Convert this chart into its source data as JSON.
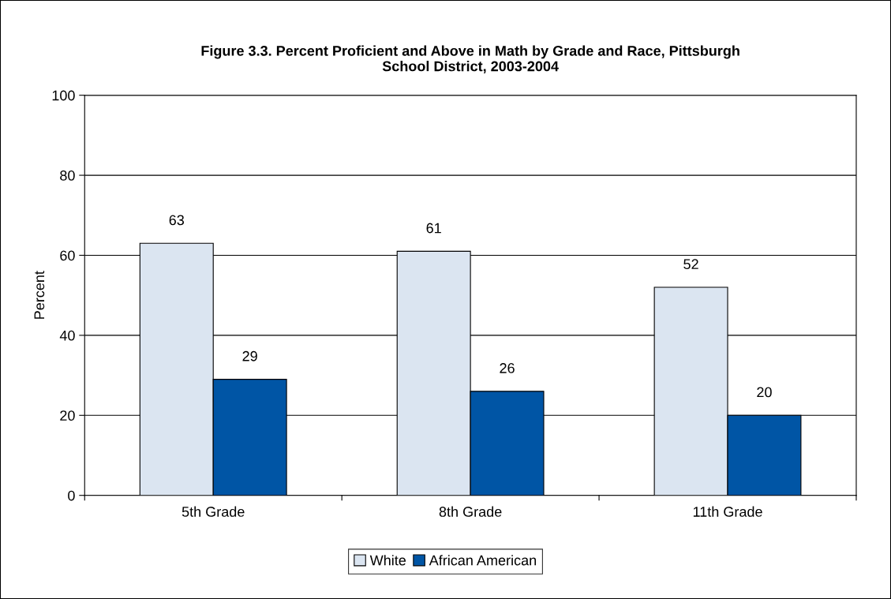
{
  "chart_data": {
    "type": "bar",
    "title": "Figure 3.3. Percent Proficient and Above in Math by Grade and Race, Pittsburgh\nSchool District, 2003-2004",
    "ylabel": "Percent",
    "categories": [
      "5th Grade",
      "8th Grade",
      "11th Grade"
    ],
    "series": [
      {
        "name": "White",
        "color": "#dbe5f1",
        "values": [
          63,
          61,
          52
        ]
      },
      {
        "name": "African American",
        "color": "#0055a5",
        "values": [
          29,
          26,
          20
        ]
      }
    ],
    "ylim": [
      0,
      100
    ],
    "yticks": [
      0,
      20,
      40,
      60,
      80,
      100
    ],
    "grid": "y",
    "legend": "bottom",
    "data_labels": true
  }
}
